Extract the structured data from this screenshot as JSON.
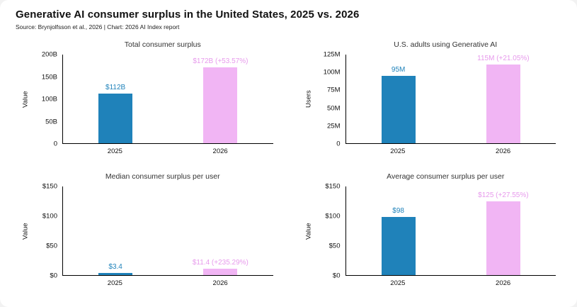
{
  "header": {
    "title": "Generative AI consumer surplus in the United States, 2025 vs. 2026",
    "source": "Source: Brynjolfsson et al., 2026 | Chart: 2026 AI Index report"
  },
  "colors": {
    "bar_2025": "#1f82ba",
    "bar_2026": "#f1b5f4",
    "label_2025": "#1f82ba",
    "label_2026": "#e79aec"
  },
  "chart_data": [
    {
      "type": "bar",
      "title": "Total consumer surplus",
      "ylabel": "Value",
      "categories": [
        "2025",
        "2026"
      ],
      "values": [
        112,
        172
      ],
      "value_labels": [
        "$112B",
        "$172B (+53.57%)"
      ],
      "ylim": [
        0,
        200
      ],
      "yticks": [
        {
          "v": 0,
          "label": "0"
        },
        {
          "v": 50,
          "label": "50B"
        },
        {
          "v": 100,
          "label": "100B"
        },
        {
          "v": 150,
          "label": "150B"
        },
        {
          "v": 200,
          "label": "200B"
        }
      ],
      "grid": false,
      "legend": "none"
    },
    {
      "type": "bar",
      "title": "U.S. adults using Generative AI",
      "ylabel": "Users",
      "categories": [
        "2025",
        "2026"
      ],
      "values": [
        95,
        115
      ],
      "value_labels": [
        "95M",
        "115M (+21.05%)"
      ],
      "ylim": [
        0,
        125
      ],
      "yticks": [
        {
          "v": 0,
          "label": "0"
        },
        {
          "v": 25,
          "label": "25M"
        },
        {
          "v": 50,
          "label": "50M"
        },
        {
          "v": 75,
          "label": "75M"
        },
        {
          "v": 100,
          "label": "100M"
        },
        {
          "v": 125,
          "label": "125M"
        }
      ],
      "grid": false,
      "legend": "none"
    },
    {
      "type": "bar",
      "title": "Median consumer surplus per user",
      "ylabel": "Value",
      "categories": [
        "2025",
        "2026"
      ],
      "values": [
        3.4,
        11.4
      ],
      "value_labels": [
        "$3.4",
        "$11.4 (+235.29%)"
      ],
      "ylim": [
        0,
        150
      ],
      "yticks": [
        {
          "v": 0,
          "label": "$0"
        },
        {
          "v": 50,
          "label": "$50"
        },
        {
          "v": 100,
          "label": "$100"
        },
        {
          "v": 150,
          "label": "$150"
        }
      ],
      "grid": false,
      "legend": "none"
    },
    {
      "type": "bar",
      "title": "Average consumer surplus per user",
      "ylabel": "Value",
      "categories": [
        "2025",
        "2026"
      ],
      "values": [
        98,
        125
      ],
      "value_labels": [
        "$98",
        "$125 (+27.55%)"
      ],
      "ylim": [
        0,
        150
      ],
      "yticks": [
        {
          "v": 0,
          "label": "$0"
        },
        {
          "v": 50,
          "label": "$50"
        },
        {
          "v": 100,
          "label": "$100"
        },
        {
          "v": 150,
          "label": "$150"
        }
      ],
      "grid": false,
      "legend": "none"
    }
  ]
}
